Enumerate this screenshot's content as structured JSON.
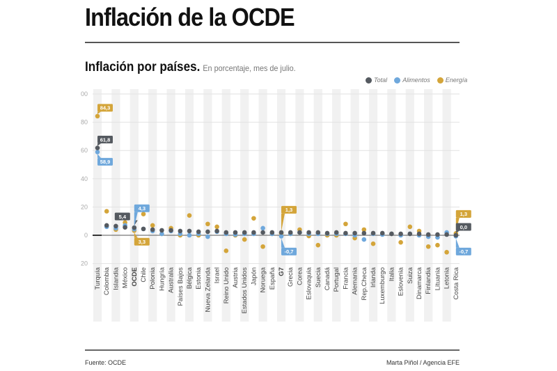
{
  "header": {
    "title": "Inflación de la OCDE"
  },
  "subtitle": {
    "main": "Inflación por países.",
    "desc": "En porcentaje, mes de julio."
  },
  "legend": [
    {
      "label": "Total",
      "color": "#555a60"
    },
    {
      "label": "Alimentos",
      "color": "#6fa8dc"
    },
    {
      "label": "Energía",
      "color": "#d4a53a"
    }
  ],
  "footer": {
    "source": "Fuente: OCDE",
    "credit": "Marta Piñol / Agencia EFE"
  },
  "chart_data": {
    "type": "scatter",
    "title": "Inflación por países.",
    "subtitle": "En porcentaje, mes de julio.",
    "xlabel": "",
    "ylabel": "",
    "ylim": [
      -20,
      100
    ],
    "yticks": [
      -20,
      0,
      20,
      40,
      60,
      80,
      100
    ],
    "ytick_labels": [
      "20",
      "0",
      "20",
      "40",
      "60",
      "80",
      "00"
    ],
    "grid": true,
    "legend_position": "top-right",
    "categories": [
      "Turquía",
      "Colombia",
      "Islandia",
      "México",
      "OCDE",
      "Chile",
      "Polonia",
      "Hungría",
      "Australia",
      "Países Bajos",
      "Bélgica",
      "Estonia",
      "Nueva Zelanda",
      "Israel",
      "Reino Unido",
      "Austria",
      "Estados Unidos",
      "Japón",
      "Noruega",
      "España",
      "G7",
      "Grecia",
      "Corea",
      "Eslovaquia",
      "Suecia",
      "Canadá",
      "Portugal",
      "Francia",
      "Alemania",
      "Rep.Checa",
      "Irlanda",
      "Luxemburgo",
      "Italia",
      "Eslovenia",
      "Suiza",
      "Dinamarca",
      "Finlandia",
      "Lituania",
      "Letonia",
      "Costa Rica"
    ],
    "bold_categories": [
      "OCDE",
      "G7"
    ],
    "series": [
      {
        "name": "Total",
        "color": "#555a60",
        "values": [
          61.8,
          7,
          6.5,
          5.6,
          5.4,
          4.5,
          4,
          3.5,
          3.5,
          3,
          3,
          2.5,
          2.5,
          3,
          2,
          2,
          2,
          2,
          2,
          2,
          2,
          2,
          2,
          2,
          2,
          1.5,
          2,
          1.5,
          1.5,
          1.5,
          1.5,
          1.5,
          1,
          1,
          1,
          1,
          0.5,
          0.5,
          0.5,
          0.0
        ]
      },
      {
        "name": "Alimentos",
        "color": "#6fa8dc",
        "values": [
          58.9,
          6,
          5,
          7,
          4.3,
          4.5,
          3,
          1,
          3,
          1,
          0,
          1,
          -1,
          2.5,
          1,
          0.5,
          1,
          1,
          5,
          1,
          -0.7,
          1,
          2,
          1,
          1,
          1,
          1,
          1,
          0,
          -3,
          1,
          0.5,
          1,
          0,
          1,
          0,
          -1,
          -1.5,
          2,
          -0.7
        ]
      },
      {
        "name": "Energía",
        "color": "#d4a53a",
        "values": [
          84.3,
          17,
          4,
          9,
          3.3,
          15,
          7,
          1,
          5,
          0,
          14,
          0,
          8,
          6,
          -11,
          0,
          -3,
          12,
          -8,
          1,
          1.3,
          1,
          4,
          -0.5,
          -7,
          0,
          0,
          8,
          -2,
          4,
          -6,
          1,
          1,
          -5,
          6,
          3,
          -8,
          -7,
          -12,
          1.3
        ]
      }
    ],
    "annotations": [
      {
        "category": "Turquía",
        "series": "Energía",
        "text": "84,3"
      },
      {
        "category": "Turquía",
        "series": "Total",
        "text": "61,8"
      },
      {
        "category": "Turquía",
        "series": "Alimentos",
        "text": "58,9"
      },
      {
        "category": "OCDE",
        "series": "Total",
        "text": "5,4"
      },
      {
        "category": "OCDE",
        "series": "Alimentos",
        "text": "4,3"
      },
      {
        "category": "OCDE",
        "series": "Energía",
        "text": "3,3"
      },
      {
        "category": "G7",
        "series": "Energía",
        "text": "1,3"
      },
      {
        "category": "G7",
        "series": "Alimentos",
        "text": "-0,7"
      },
      {
        "category": "Costa Rica",
        "series": "Energía",
        "text": "1,3"
      },
      {
        "category": "Costa Rica",
        "series": "Total",
        "text": "0,0"
      },
      {
        "category": "Costa Rica",
        "series": "Alimentos",
        "text": "-0,7"
      }
    ]
  }
}
